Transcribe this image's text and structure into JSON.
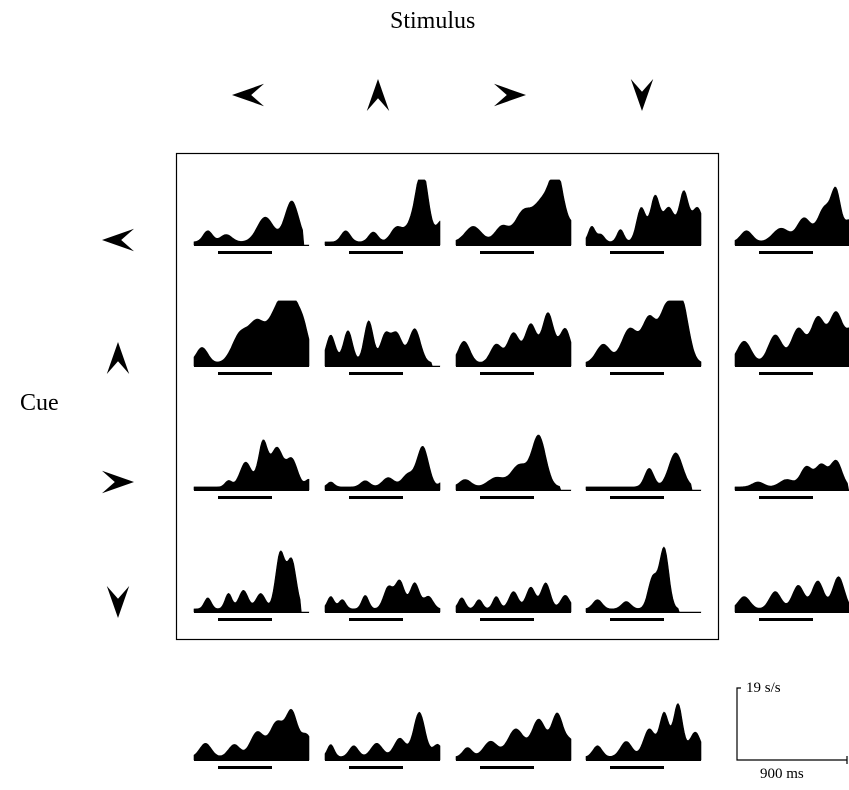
{
  "figure": {
    "title_top": "Stimulus",
    "title_left": "Cue",
    "scale": {
      "rate": "19 s/s",
      "time": "900 ms"
    },
    "stimulus_directions": [
      "left",
      "up",
      "right",
      "down"
    ],
    "cue_directions": [
      "left",
      "up",
      "right",
      "down"
    ],
    "colors": {
      "ink": "#000000",
      "background": "#ffffff"
    },
    "panels": [
      {
        "row": "left",
        "col": "left",
        "profile": [
          {
            "c": 0.12,
            "h": 0.18,
            "w": 0.04
          },
          {
            "c": 0.28,
            "h": 0.12,
            "w": 0.05
          },
          {
            "c": 0.62,
            "h": 0.4,
            "w": 0.07
          },
          {
            "c": 0.85,
            "h": 0.66,
            "w": 0.06
          }
        ],
        "cutoff": 0.95
      },
      {
        "row": "left",
        "col": "up",
        "profile": [
          {
            "c": 0.18,
            "h": 0.18,
            "w": 0.04
          },
          {
            "c": 0.42,
            "h": 0.16,
            "w": 0.04
          },
          {
            "c": 0.62,
            "h": 0.22,
            "w": 0.05
          },
          {
            "c": 0.78,
            "h": 0.35,
            "w": 0.07
          },
          {
            "c": 0.85,
            "h": 0.98,
            "w": 0.05
          },
          {
            "c": 1.02,
            "h": 0.35,
            "w": 0.05
          }
        ]
      },
      {
        "row": "left",
        "col": "right",
        "profile": [
          {
            "c": 0.15,
            "h": 0.25,
            "w": 0.07
          },
          {
            "c": 0.4,
            "h": 0.25,
            "w": 0.06
          },
          {
            "c": 0.58,
            "h": 0.45,
            "w": 0.07
          },
          {
            "c": 0.75,
            "h": 0.62,
            "w": 0.08
          },
          {
            "c": 0.88,
            "h": 1.0,
            "w": 0.06
          },
          {
            "c": 1.03,
            "h": 0.25,
            "w": 0.05
          }
        ]
      },
      {
        "row": "left",
        "col": "down",
        "profile": [
          {
            "c": 0.05,
            "h": 0.25,
            "w": 0.03
          },
          {
            "c": 0.13,
            "h": 0.12,
            "w": 0.03
          },
          {
            "c": 0.3,
            "h": 0.2,
            "w": 0.03
          },
          {
            "c": 0.48,
            "h": 0.55,
            "w": 0.04
          },
          {
            "c": 0.6,
            "h": 0.72,
            "w": 0.04
          },
          {
            "c": 0.72,
            "h": 0.55,
            "w": 0.05
          },
          {
            "c": 0.85,
            "h": 0.78,
            "w": 0.04
          },
          {
            "c": 0.97,
            "h": 0.55,
            "w": 0.05
          }
        ]
      },
      {
        "row": "up",
        "col": "left",
        "profile": [
          {
            "c": 0.07,
            "h": 0.25,
            "w": 0.05
          },
          {
            "c": 0.4,
            "h": 0.45,
            "w": 0.07
          },
          {
            "c": 0.55,
            "h": 0.62,
            "w": 0.07
          },
          {
            "c": 0.72,
            "h": 0.8,
            "w": 0.07
          },
          {
            "c": 0.82,
            "h": 1.0,
            "w": 0.05
          },
          {
            "c": 0.93,
            "h": 0.75,
            "w": 0.06
          }
        ]
      },
      {
        "row": "up",
        "col": "up",
        "profile": [
          {
            "c": 0.05,
            "h": 0.45,
            "w": 0.04
          },
          {
            "c": 0.2,
            "h": 0.52,
            "w": 0.04
          },
          {
            "c": 0.38,
            "h": 0.68,
            "w": 0.04
          },
          {
            "c": 0.52,
            "h": 0.42,
            "w": 0.04
          },
          {
            "c": 0.62,
            "h": 0.48,
            "w": 0.05
          },
          {
            "c": 0.78,
            "h": 0.55,
            "w": 0.05
          }
        ],
        "cutoff": 0.93
      },
      {
        "row": "up",
        "col": "right",
        "profile": [
          {
            "c": 0.07,
            "h": 0.35,
            "w": 0.05
          },
          {
            "c": 0.35,
            "h": 0.3,
            "w": 0.05
          },
          {
            "c": 0.5,
            "h": 0.48,
            "w": 0.05
          },
          {
            "c": 0.65,
            "h": 0.62,
            "w": 0.05
          },
          {
            "c": 0.8,
            "h": 0.8,
            "w": 0.05
          },
          {
            "c": 0.95,
            "h": 0.55,
            "w": 0.05
          }
        ]
      },
      {
        "row": "up",
        "col": "down",
        "profile": [
          {
            "c": 0.15,
            "h": 0.3,
            "w": 0.06
          },
          {
            "c": 0.38,
            "h": 0.55,
            "w": 0.07
          },
          {
            "c": 0.55,
            "h": 0.7,
            "w": 0.06
          },
          {
            "c": 0.7,
            "h": 0.85,
            "w": 0.06
          },
          {
            "c": 0.83,
            "h": 1.0,
            "w": 0.06
          }
        ],
        "cutoff": 1.05
      },
      {
        "row": "right",
        "col": "left",
        "profile": [
          {
            "c": 0.3,
            "h": 0.1,
            "w": 0.03
          },
          {
            "c": 0.45,
            "h": 0.4,
            "w": 0.05
          },
          {
            "c": 0.6,
            "h": 0.72,
            "w": 0.04
          },
          {
            "c": 0.72,
            "h": 0.62,
            "w": 0.05
          },
          {
            "c": 0.85,
            "h": 0.45,
            "w": 0.05
          },
          {
            "c": 1.0,
            "h": 0.12,
            "w": 0.03
          }
        ]
      },
      {
        "row": "right",
        "col": "up",
        "profile": [
          {
            "c": 0.05,
            "h": 0.08,
            "w": 0.03
          },
          {
            "c": 0.35,
            "h": 0.1,
            "w": 0.04
          },
          {
            "c": 0.55,
            "h": 0.15,
            "w": 0.05
          },
          {
            "c": 0.72,
            "h": 0.2,
            "w": 0.05
          },
          {
            "c": 0.85,
            "h": 0.65,
            "w": 0.05
          },
          {
            "c": 1.03,
            "h": 0.1,
            "w": 0.03
          }
        ]
      },
      {
        "row": "right",
        "col": "right",
        "profile": [
          {
            "c": 0.08,
            "h": 0.12,
            "w": 0.05
          },
          {
            "c": 0.35,
            "h": 0.15,
            "w": 0.07
          },
          {
            "c": 0.55,
            "h": 0.35,
            "w": 0.07
          },
          {
            "c": 0.72,
            "h": 0.82,
            "w": 0.06
          }
        ],
        "cutoff": 0.9
      },
      {
        "row": "right",
        "col": "down",
        "profile": [
          {
            "c": 0.55,
            "h": 0.3,
            "w": 0.04
          },
          {
            "c": 0.78,
            "h": 0.55,
            "w": 0.06
          }
        ],
        "cutoff": 0.92
      },
      {
        "row": "down",
        "col": "left",
        "profile": [
          {
            "c": 0.12,
            "h": 0.18,
            "w": 0.03
          },
          {
            "c": 0.3,
            "h": 0.25,
            "w": 0.03
          },
          {
            "c": 0.43,
            "h": 0.3,
            "w": 0.04
          },
          {
            "c": 0.58,
            "h": 0.25,
            "w": 0.04
          },
          {
            "c": 0.75,
            "h": 0.9,
            "w": 0.04
          },
          {
            "c": 0.85,
            "h": 0.78,
            "w": 0.04
          }
        ],
        "cutoff": 0.93
      },
      {
        "row": "down",
        "col": "up",
        "profile": [
          {
            "c": 0.05,
            "h": 0.2,
            "w": 0.03
          },
          {
            "c": 0.15,
            "h": 0.15,
            "w": 0.03
          },
          {
            "c": 0.35,
            "h": 0.22,
            "w": 0.03
          },
          {
            "c": 0.55,
            "h": 0.35,
            "w": 0.04
          },
          {
            "c": 0.65,
            "h": 0.45,
            "w": 0.04
          },
          {
            "c": 0.78,
            "h": 0.42,
            "w": 0.04
          },
          {
            "c": 0.9,
            "h": 0.2,
            "w": 0.04
          }
        ]
      },
      {
        "row": "down",
        "col": "right",
        "profile": [
          {
            "c": 0.05,
            "h": 0.18,
            "w": 0.03
          },
          {
            "c": 0.2,
            "h": 0.15,
            "w": 0.03
          },
          {
            "c": 0.35,
            "h": 0.2,
            "w": 0.03
          },
          {
            "c": 0.5,
            "h": 0.28,
            "w": 0.04
          },
          {
            "c": 0.65,
            "h": 0.35,
            "w": 0.04
          },
          {
            "c": 0.78,
            "h": 0.42,
            "w": 0.04
          },
          {
            "c": 0.95,
            "h": 0.22,
            "w": 0.04
          }
        ]
      },
      {
        "row": "down",
        "col": "down",
        "profile": [
          {
            "c": 0.1,
            "h": 0.15,
            "w": 0.04
          },
          {
            "c": 0.35,
            "h": 0.12,
            "w": 0.04
          },
          {
            "c": 0.58,
            "h": 0.5,
            "w": 0.04
          },
          {
            "c": 0.68,
            "h": 0.98,
            "w": 0.04
          }
        ],
        "cutoff": 0.8
      }
    ],
    "row_averages": [
      {
        "row": "left",
        "profile": [
          {
            "c": 0.1,
            "h": 0.18,
            "w": 0.05
          },
          {
            "c": 0.4,
            "h": 0.22,
            "w": 0.07
          },
          {
            "c": 0.6,
            "h": 0.38,
            "w": 0.06
          },
          {
            "c": 0.78,
            "h": 0.55,
            "w": 0.06
          },
          {
            "c": 0.88,
            "h": 0.72,
            "w": 0.04
          },
          {
            "c": 1.0,
            "h": 0.35,
            "w": 0.05
          }
        ]
      },
      {
        "row": "up",
        "profile": [
          {
            "c": 0.08,
            "h": 0.35,
            "w": 0.06
          },
          {
            "c": 0.35,
            "h": 0.45,
            "w": 0.06
          },
          {
            "c": 0.55,
            "h": 0.55,
            "w": 0.06
          },
          {
            "c": 0.72,
            "h": 0.72,
            "w": 0.06
          },
          {
            "c": 0.88,
            "h": 0.8,
            "w": 0.06
          },
          {
            "c": 1.02,
            "h": 0.5,
            "w": 0.05
          }
        ]
      },
      {
        "row": "right",
        "profile": [
          {
            "c": 0.2,
            "h": 0.08,
            "w": 0.05
          },
          {
            "c": 0.45,
            "h": 0.12,
            "w": 0.06
          },
          {
            "c": 0.62,
            "h": 0.32,
            "w": 0.05
          },
          {
            "c": 0.75,
            "h": 0.35,
            "w": 0.05
          },
          {
            "c": 0.88,
            "h": 0.42,
            "w": 0.05
          }
        ],
        "cutoff": 0.98
      },
      {
        "row": "down",
        "profile": [
          {
            "c": 0.08,
            "h": 0.2,
            "w": 0.05
          },
          {
            "c": 0.35,
            "h": 0.28,
            "w": 0.05
          },
          {
            "c": 0.55,
            "h": 0.38,
            "w": 0.05
          },
          {
            "c": 0.72,
            "h": 0.45,
            "w": 0.05
          },
          {
            "c": 0.9,
            "h": 0.52,
            "w": 0.05
          }
        ]
      }
    ],
    "column_averages": [
      {
        "col": "left",
        "profile": [
          {
            "c": 0.1,
            "h": 0.22,
            "w": 0.05
          },
          {
            "c": 0.35,
            "h": 0.2,
            "w": 0.05
          },
          {
            "c": 0.55,
            "h": 0.4,
            "w": 0.06
          },
          {
            "c": 0.72,
            "h": 0.55,
            "w": 0.06
          },
          {
            "c": 0.85,
            "h": 0.7,
            "w": 0.05
          },
          {
            "c": 0.98,
            "h": 0.35,
            "w": 0.05
          }
        ]
      },
      {
        "col": "up",
        "profile": [
          {
            "c": 0.05,
            "h": 0.2,
            "w": 0.03
          },
          {
            "c": 0.25,
            "h": 0.18,
            "w": 0.04
          },
          {
            "c": 0.45,
            "h": 0.22,
            "w": 0.05
          },
          {
            "c": 0.65,
            "h": 0.3,
            "w": 0.05
          },
          {
            "c": 0.82,
            "h": 0.72,
            "w": 0.05
          },
          {
            "c": 0.98,
            "h": 0.2,
            "w": 0.04
          }
        ]
      },
      {
        "col": "right",
        "profile": [
          {
            "c": 0.1,
            "h": 0.15,
            "w": 0.04
          },
          {
            "c": 0.3,
            "h": 0.25,
            "w": 0.06
          },
          {
            "c": 0.52,
            "h": 0.45,
            "w": 0.07
          },
          {
            "c": 0.72,
            "h": 0.6,
            "w": 0.06
          },
          {
            "c": 0.88,
            "h": 0.68,
            "w": 0.05
          },
          {
            "c": 1.0,
            "h": 0.25,
            "w": 0.05
          }
        ]
      },
      {
        "col": "down",
        "profile": [
          {
            "c": 0.1,
            "h": 0.18,
            "w": 0.04
          },
          {
            "c": 0.35,
            "h": 0.25,
            "w": 0.05
          },
          {
            "c": 0.55,
            "h": 0.45,
            "w": 0.05
          },
          {
            "c": 0.68,
            "h": 0.7,
            "w": 0.04
          },
          {
            "c": 0.8,
            "h": 0.85,
            "w": 0.04
          },
          {
            "c": 0.95,
            "h": 0.4,
            "w": 0.05
          }
        ]
      }
    ]
  }
}
